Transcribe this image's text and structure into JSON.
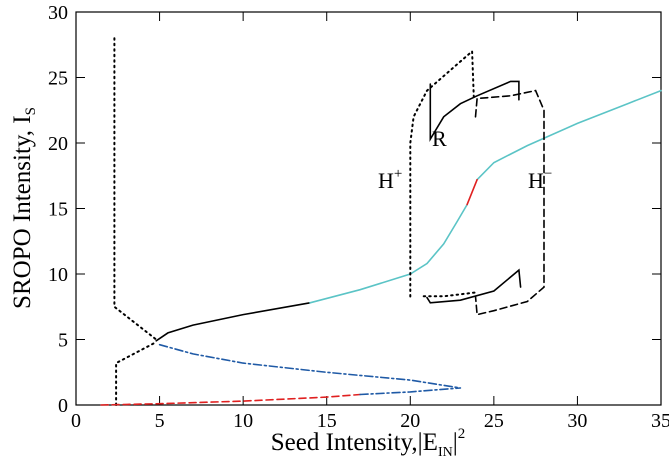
{
  "chart_data": {
    "type": "line",
    "x_label": {
      "text": "Seed Intensity,|E",
      "sub": "IN",
      "after": "|",
      "sup": "2"
    },
    "y_label": {
      "text": "SROPO Intensity, I",
      "sub": "S"
    },
    "xlim": [
      0,
      35
    ],
    "xticks": [
      0,
      5,
      10,
      15,
      20,
      25,
      30,
      35
    ],
    "ylim": [
      0,
      30
    ],
    "yticks": [
      0,
      5,
      10,
      15,
      20,
      25,
      30
    ],
    "annotations": [
      {
        "text": "H",
        "sup": "+"
      },
      {
        "text": "R"
      },
      {
        "text": "H",
        "sup": "−"
      }
    ],
    "series": [
      {
        "color": "#000000",
        "dash": "dotted",
        "x": [
          2.3,
          2.3,
          4.8,
          null,
          2.4,
          2.4,
          4.8
        ],
        "values": [
          28,
          7.5,
          5.0,
          null,
          0,
          3.2,
          4.8
        ]
      },
      {
        "color": "#000000",
        "dash": "solid",
        "x": [
          4.8,
          5.5,
          7,
          10,
          14
        ],
        "values": [
          4.9,
          5.5,
          6.1,
          6.9,
          7.8
        ]
      },
      {
        "color": "#5bc4c6",
        "dash": "solid",
        "x": [
          14,
          17,
          20,
          21,
          22,
          22.8,
          23.4,
          null,
          24,
          25,
          27,
          30,
          33,
          35
        ],
        "values": [
          7.8,
          8.8,
          10,
          10.8,
          12.3,
          14,
          15.3,
          null,
          17.2,
          18.5,
          19.8,
          21.5,
          23,
          24
        ]
      },
      {
        "color": "#e02020",
        "dash": "solid",
        "x": [
          23.4,
          24
        ],
        "values": [
          15.3,
          17.2
        ]
      },
      {
        "color": "#e02020",
        "dash": "dashed",
        "x": [
          1.5,
          5,
          10,
          15,
          17
        ],
        "values": [
          0,
          0.1,
          0.3,
          0.6,
          0.8
        ]
      },
      {
        "color": "#1f5aa6",
        "dash": "dashdot",
        "x": [
          5,
          7,
          10,
          15,
          20,
          23,
          null,
          17,
          20,
          23
        ],
        "values": [
          4.6,
          3.9,
          3.2,
          2.5,
          1.9,
          1.3,
          null,
          0.8,
          1.0,
          1.3
        ]
      },
      {
        "color": "#000000",
        "dash": "dotted",
        "x": [
          23.8,
          23.7,
          21,
          20.2,
          20,
          20,
          null,
          20.8,
          22,
          24
        ],
        "values": [
          23.5,
          27,
          24,
          22,
          20,
          8,
          null,
          8.3,
          8.3,
          8.6
        ]
      },
      {
        "color": "#000000",
        "dash": "solid",
        "x": [
          21.2,
          21.2,
          22,
          23,
          24,
          26,
          26.5,
          26.5,
          null,
          21,
          21.2,
          23,
          25,
          26.5,
          26.6
        ],
        "values": [
          24.5,
          20.3,
          22,
          23,
          23.6,
          24.7,
          24.7,
          23.3,
          null,
          8.2,
          7.8,
          8,
          8.7,
          10.3,
          9
        ]
      },
      {
        "color": "#000000",
        "dash": "dashed",
        "x": [
          23.9,
          24,
          26,
          27.5,
          28,
          28,
          27,
          25,
          24,
          23.9
        ],
        "values": [
          22,
          23.4,
          23.6,
          24,
          22.5,
          9,
          7.9,
          7.2,
          6.9,
          8.3
        ]
      }
    ]
  }
}
